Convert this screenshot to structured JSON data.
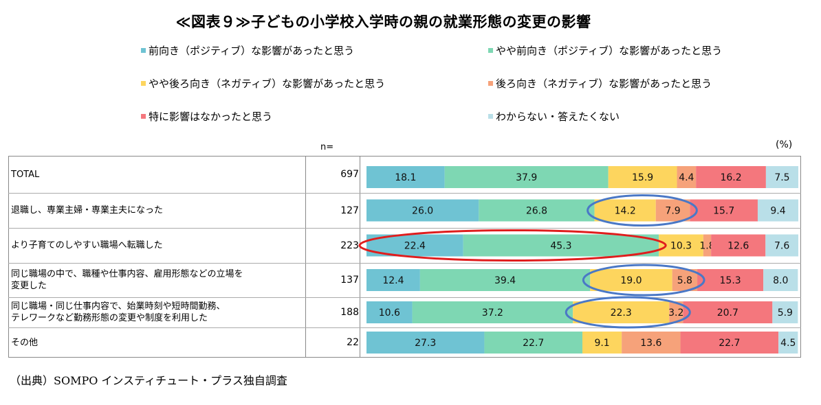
{
  "title": "≪図表９≫子どもの小学校入学時の親の就業形態の変更の影響",
  "n_header": "n=",
  "unit": "(%)",
  "source": "（出典）SOMPO インスティチュート・プラス独自調査",
  "chart_data": {
    "type": "bar",
    "orientation": "horizontal",
    "stacked": true,
    "percent": true,
    "legend_placement": "top",
    "categories": [
      "TOTAL",
      "退職し、専業主婦・専業主夫になった",
      "より子育てのしやすい職場へ転職した",
      "同じ職場の中で、職種や仕事内容、雇用形態などの立場を\n変更した",
      "同じ職場・同じ仕事内容で、始業時刻や短時間勤務、\nテレワークなど勤務形態の変更や制度を利用した",
      "その他"
    ],
    "n": [
      "697",
      "127",
      "223",
      "137",
      "188",
      "22"
    ],
    "series": [
      {
        "name": "前向き（ポジティブ）な影響があったと思う",
        "color": "#6fc3d3",
        "values": [
          18.1,
          26.0,
          22.4,
          12.4,
          10.6,
          27.3
        ]
      },
      {
        "name": "やや前向き（ポジティブ）な影響があったと思う",
        "color": "#7ed7b3",
        "values": [
          37.9,
          26.8,
          45.3,
          39.4,
          37.2,
          22.7
        ]
      },
      {
        "name": "やや後ろ向き（ネガティブ）な影響があったと思う",
        "color": "#fdd55e",
        "values": [
          15.9,
          14.2,
          10.3,
          19.0,
          22.3,
          9.1
        ]
      },
      {
        "name": "後ろ向き（ネガティブ）な影響があったと思う",
        "color": "#f6a27a",
        "values": [
          4.4,
          7.9,
          1.8,
          5.8,
          3.2,
          13.6
        ]
      },
      {
        "name": "特に影響はなかったと思う",
        "color": "#f4777d",
        "values": [
          16.2,
          15.7,
          12.6,
          15.3,
          20.7,
          22.7
        ]
      },
      {
        "name": "わからない・答えたくない",
        "color": "#b9dfe8",
        "values": [
          7.5,
          9.4,
          7.6,
          8.0,
          5.9,
          4.5
        ]
      }
    ],
    "xlim": [
      0,
      100
    ],
    "highlights": [
      {
        "row": 1,
        "from_series": 2,
        "to_series": 3,
        "color": "#4a78c6"
      },
      {
        "row": 2,
        "from_series": 0,
        "to_series": 1,
        "color": "#e01d1d"
      },
      {
        "row": 3,
        "from_series": 2,
        "to_series": 3,
        "color": "#4a78c6"
      },
      {
        "row": 4,
        "from_series": 2,
        "to_series": 3,
        "color": "#4a78c6"
      }
    ]
  }
}
